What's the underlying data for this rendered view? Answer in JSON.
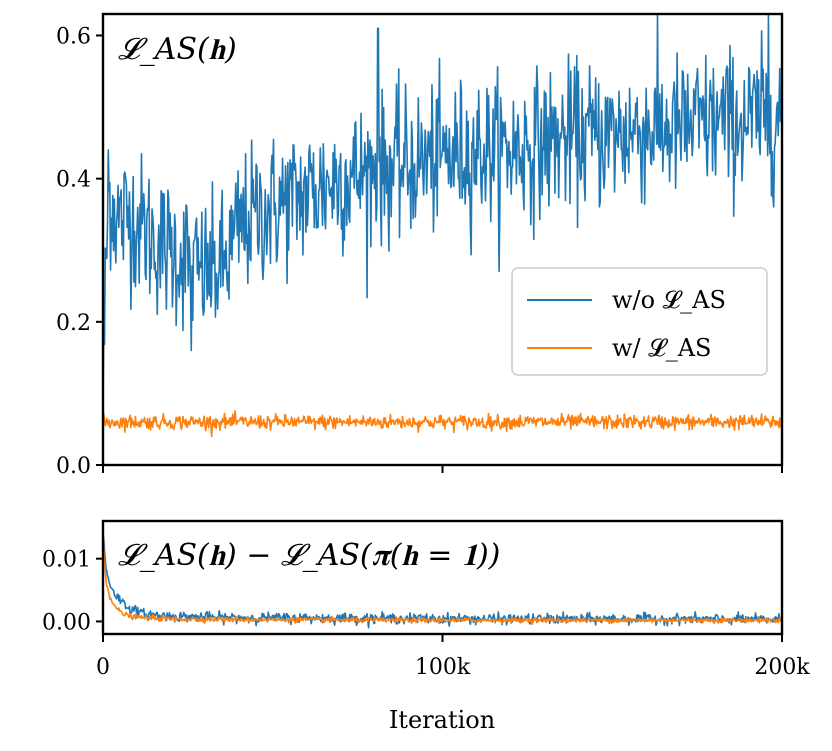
{
  "chart_data": [
    {
      "type": "line",
      "title": "𝓛_AS(𝐡)",
      "xlabel": "",
      "ylabel": "",
      "xlim": [
        0,
        200000
      ],
      "ylim": [
        0,
        0.63
      ],
      "yticks": [
        0.0,
        0.2,
        0.4,
        0.6
      ],
      "ytick_labels": [
        "0.0",
        "0.2",
        "0.4",
        "0.6"
      ],
      "xticks": [
        0,
        100000,
        200000
      ],
      "legend_position": "center-right",
      "series": [
        {
          "name": "w/o 𝓛_AS",
          "color": "#1f77b4",
          "x": [
            0,
            1000,
            2000,
            3000,
            5000,
            8000,
            12000,
            16000,
            20000,
            24000,
            28000,
            32000,
            36000,
            40000,
            45000,
            50000,
            55000,
            60000,
            70000,
            80000,
            90000,
            100000,
            110000,
            120000,
            130000,
            140000,
            150000,
            160000,
            170000,
            180000,
            190000,
            200000
          ],
          "values": [
            0.1,
            0.3,
            0.38,
            0.36,
            0.34,
            0.35,
            0.33,
            0.31,
            0.3,
            0.29,
            0.27,
            0.27,
            0.28,
            0.33,
            0.35,
            0.36,
            0.37,
            0.38,
            0.4,
            0.41,
            0.42,
            0.43,
            0.44,
            0.44,
            0.45,
            0.46,
            0.46,
            0.47,
            0.47,
            0.48,
            0.48,
            0.49
          ],
          "noise": 0.05,
          "peaks": [
            {
              "x": 1500,
              "y": 0.44
            },
            {
              "x": 26000,
              "y": 0.16
            },
            {
              "x": 81000,
              "y": 0.61
            },
            {
              "x": 196000,
              "y": 0.63
            }
          ]
        },
        {
          "name": "w/ 𝓛_AS",
          "color": "#ff7f0e",
          "x": [
            0,
            200000
          ],
          "values": [
            0.06,
            0.06
          ],
          "noise": 0.005
        }
      ]
    },
    {
      "type": "line",
      "title": "𝓛_AS(𝐡) − 𝓛_AS(𝛑(𝐡 = 𝟏))",
      "xlabel": "Iteration",
      "ylabel": "",
      "xlim": [
        0,
        200000
      ],
      "ylim": [
        -0.002,
        0.016
      ],
      "yticks": [
        0.0,
        0.01
      ],
      "ytick_labels": [
        "0.00",
        "0.01"
      ],
      "xticks": [
        0,
        100000,
        200000
      ],
      "xtick_labels": [
        "0",
        "100k",
        "200k"
      ],
      "series": [
        {
          "name": "w/o 𝓛_AS",
          "color": "#1f77b4",
          "x": [
            0,
            1000,
            2000,
            4000,
            6000,
            8000,
            12000,
            20000,
            40000,
            80000,
            120000,
            160000,
            200000
          ],
          "values": [
            0.014,
            0.008,
            0.006,
            0.004,
            0.003,
            0.002,
            0.0012,
            0.0008,
            0.0006,
            0.0005,
            0.0004,
            0.0004,
            0.0003
          ],
          "noise": 0.0004
        },
        {
          "name": "w/ 𝓛_AS",
          "color": "#ff7f0e",
          "x": [
            0,
            1000,
            2000,
            4000,
            6000,
            8000,
            12000,
            20000,
            40000,
            80000,
            120000,
            160000,
            200000
          ],
          "values": [
            0.013,
            0.006,
            0.004,
            0.002,
            0.0012,
            0.0008,
            0.0006,
            0.0004,
            0.0003,
            0.0002,
            0.0002,
            0.0002,
            0.0002
          ],
          "noise": 0.0002
        }
      ]
    }
  ]
}
